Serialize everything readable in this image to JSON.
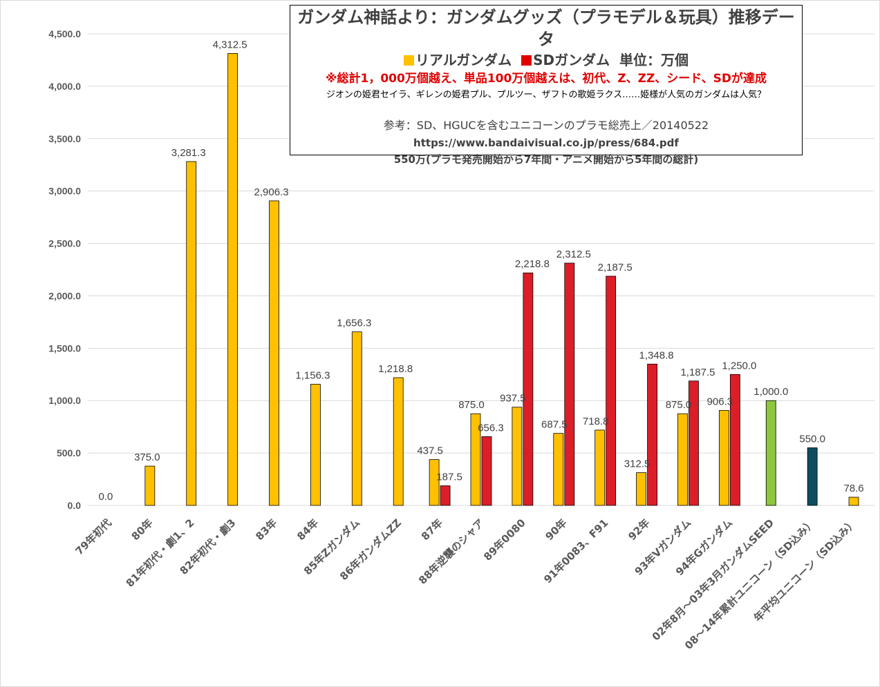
{
  "chart_data": {
    "type": "bar",
    "title": "ガンダム神話より：ガンダムグッズ（プラモデル＆玩具）推移データ",
    "legend": {
      "real": "リアルガンダム",
      "sd": "SDガンダム",
      "unit": "単位：万個"
    },
    "note": "※総計1，000万個越え、単品100万個越えは、初代、Z、ZZ、シード、SDが達成",
    "subnote": "ジオンの姫君セイラ、ギレンの姫君プル、プルツー、ザフトの歌姫ラクス……姫様が人気のガンダムは人気？",
    "reference": "参考：SD、HGUCを含むユニコーンのプラモ総売上／20140522",
    "url": "https://www.bandaivisual.co.jp/press/684.pdf",
    "total_note": "550万(プラモ発売開始から7年間・アニメ開始から5年間の総計)",
    "ylim": [
      0,
      4500
    ],
    "yticks": [
      "0.0",
      "500.0",
      "1,000.0",
      "1,500.0",
      "2,000.0",
      "2,500.0",
      "3,000.0",
      "3,500.0",
      "4,000.0",
      "4,500.0"
    ],
    "categories": [
      "79年初代",
      "80年",
      "81年初代・劇1、2",
      "82年初代・劇3",
      "83年",
      "84年",
      "85年Zガンダム",
      "86年ガンダムZZ",
      "87年",
      "88年逆襲のシャア",
      "89年0080",
      "90年",
      "91年0083、F91",
      "92年",
      "93年Vガンダム",
      "94年Gガンダム",
      "02年8月～03年3月ガンダムSEED",
      "08～14年累計ユニコーン（SD込み）",
      "年平均ユニコーン（SD込み）"
    ],
    "series": [
      {
        "name": "リアルガンダム",
        "color": "#ffc000",
        "values": [
          0.0,
          375.0,
          3281.3,
          4312.5,
          2906.3,
          1156.3,
          1656.3,
          1218.8,
          437.5,
          875.0,
          937.5,
          687.5,
          718.8,
          312.5,
          875.0,
          906.3,
          null,
          null,
          null
        ],
        "labels": [
          "0.0",
          "375.0",
          "3,281.3",
          "4,312.5",
          "2,906.3",
          "1,156.3",
          "1,656.3",
          "1,218.8",
          "437.5",
          "875.0",
          "937.5",
          "687.5",
          "718.8",
          "312.5",
          "875.0",
          "906.3",
          "",
          "",
          ""
        ]
      },
      {
        "name": "SDガンダム",
        "color": "#dc1e28",
        "values": [
          null,
          null,
          null,
          null,
          null,
          null,
          null,
          null,
          187.5,
          656.3,
          2218.8,
          2312.5,
          2187.5,
          1348.8,
          1187.5,
          1250.0,
          null,
          null,
          null
        ],
        "labels": [
          "",
          "",
          "",
          "",
          "",
          "",
          "",
          "",
          "187.5",
          "656.3",
          "2,218.8",
          "2,312.5",
          "2,187.5",
          "1,348.8",
          "1,187.5",
          "1,250.0",
          "",
          "",
          ""
        ]
      }
    ],
    "extra_bars": [
      {
        "category": "02年8月～03年3月ガンダムSEED",
        "value": 1000.0,
        "label": "1,000.0",
        "color": "#8dc63f"
      },
      {
        "category": "08～14年累計ユニコーン（SD込み）",
        "value": 550.0,
        "label": "550.0",
        "color": "#0e4d5e"
      },
      {
        "category": "年平均ユニコーン（SD込み）",
        "value": 78.6,
        "label": "78.6",
        "color": "#ffc000"
      }
    ],
    "grid": true
  }
}
